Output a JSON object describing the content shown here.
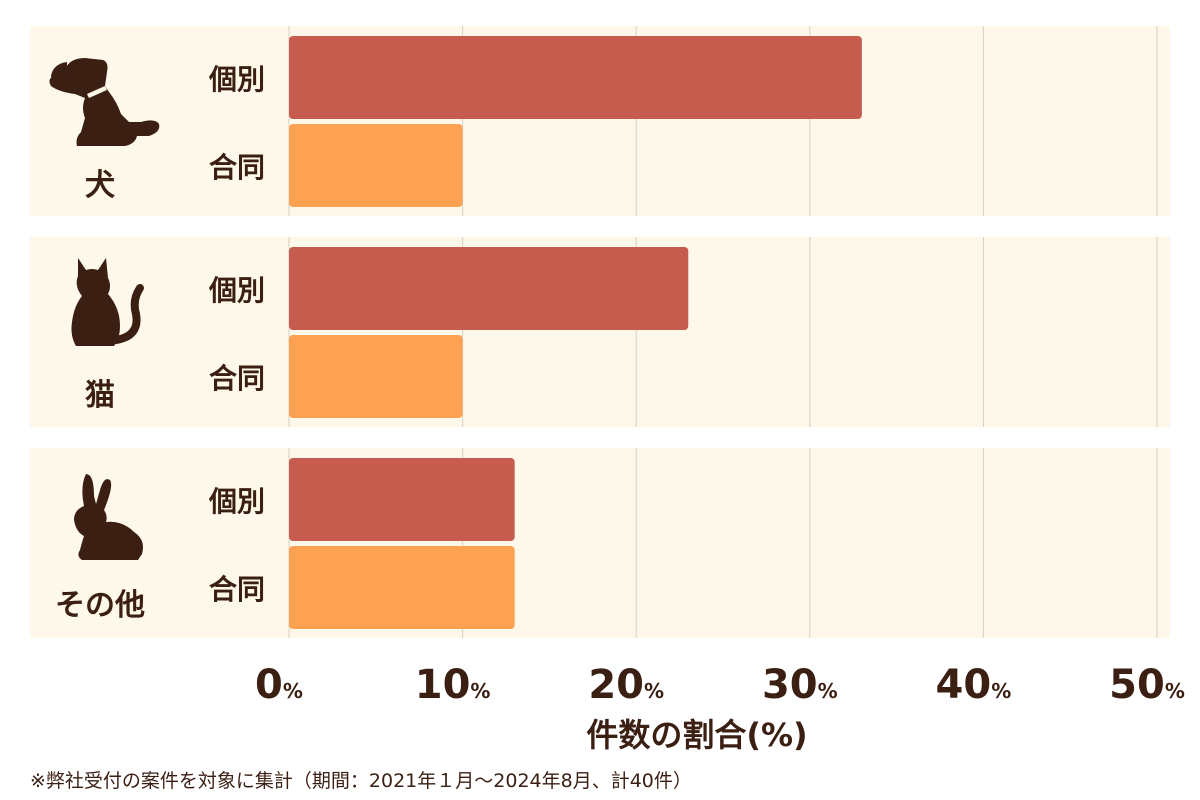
{
  "colors": {
    "panel": "#fdf8ea",
    "individual": "#c65c4e",
    "joint": "#ffa152",
    "grid": "#d6d0c4",
    "text": "#3b1f13"
  },
  "chart_data": {
    "type": "bar",
    "orientation": "horizontal",
    "groups": [
      {
        "label": "犬",
        "icon": "dog-icon",
        "bars": [
          {
            "label": "個別",
            "value": 33
          },
          {
            "label": "合同",
            "value": 10
          }
        ]
      },
      {
        "label": "猫",
        "icon": "cat-icon",
        "bars": [
          {
            "label": "個別",
            "value": 23
          },
          {
            "label": "合同",
            "value": 10
          }
        ]
      },
      {
        "label": "その他",
        "icon": "rabbit-icon",
        "bars": [
          {
            "label": "個別",
            "value": 13
          },
          {
            "label": "合同",
            "value": 13
          }
        ]
      }
    ],
    "xlim": [
      0,
      50
    ],
    "xticks": [
      0,
      10,
      20,
      30,
      40,
      50
    ],
    "tick_suffix": "%",
    "xlabel": "件数の割合(%)",
    "grid": true
  },
  "footnote": "※弊社受付の案件を対象に集計（期間：2021年１月〜2024年8月、計40件）"
}
